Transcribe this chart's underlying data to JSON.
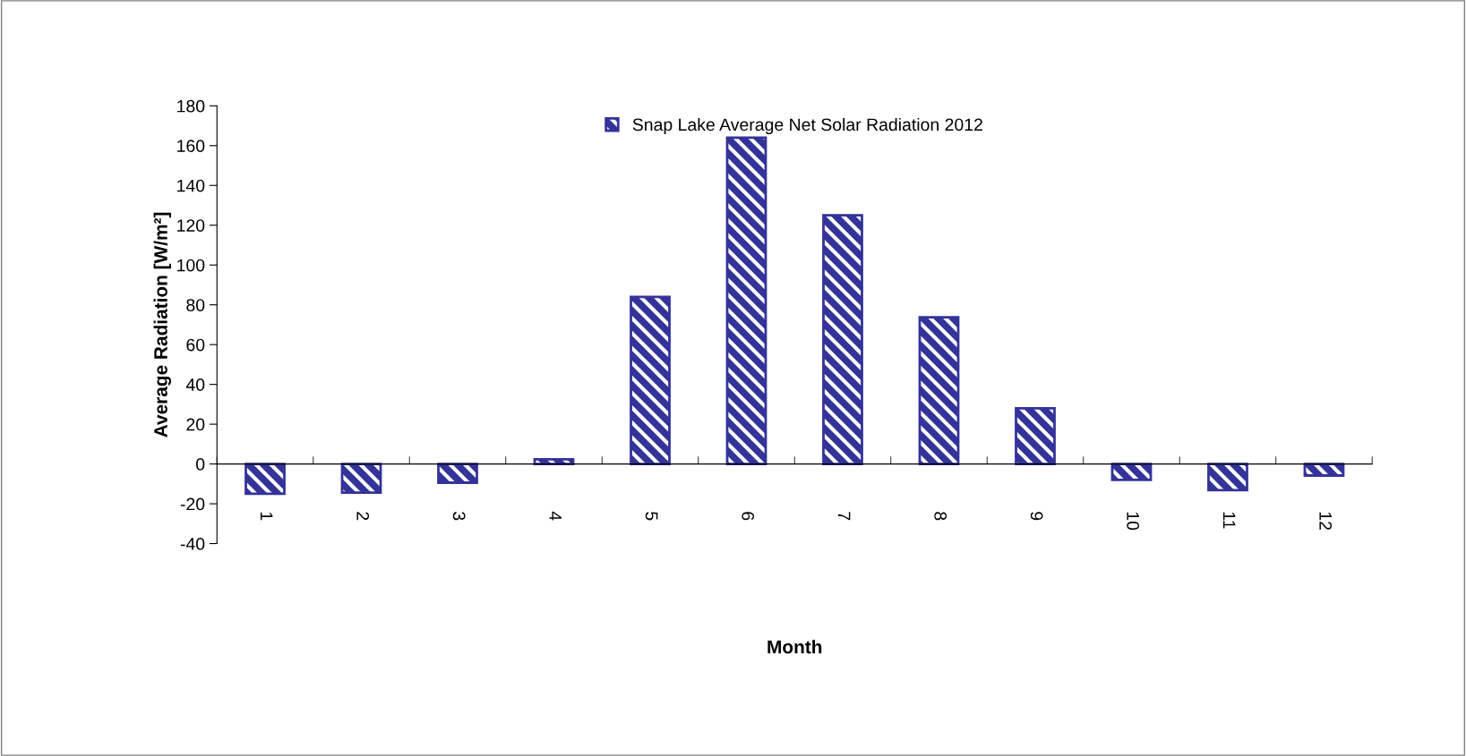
{
  "chart_data": {
    "type": "bar",
    "xlabel": "Month",
    "ylabel": "Average Radiation [W/m²]",
    "categories": [
      "1",
      "2",
      "3",
      "4",
      "5",
      "6",
      "7",
      "8",
      "9",
      "10",
      "11",
      "12"
    ],
    "series": [
      {
        "name": "Snap Lake Average Net Solar Radiation 2012",
        "color": "#333399",
        "values": [
          -15,
          -14.4,
          -9.4,
          2.3,
          84,
          164,
          125,
          73.7,
          28,
          -8,
          -13.2,
          -5.8
        ]
      }
    ],
    "ylim": [
      -40,
      180
    ],
    "yticks": [
      -40,
      -20,
      0,
      20,
      40,
      60,
      80,
      100,
      120,
      140,
      160,
      180
    ],
    "legend": "top"
  }
}
